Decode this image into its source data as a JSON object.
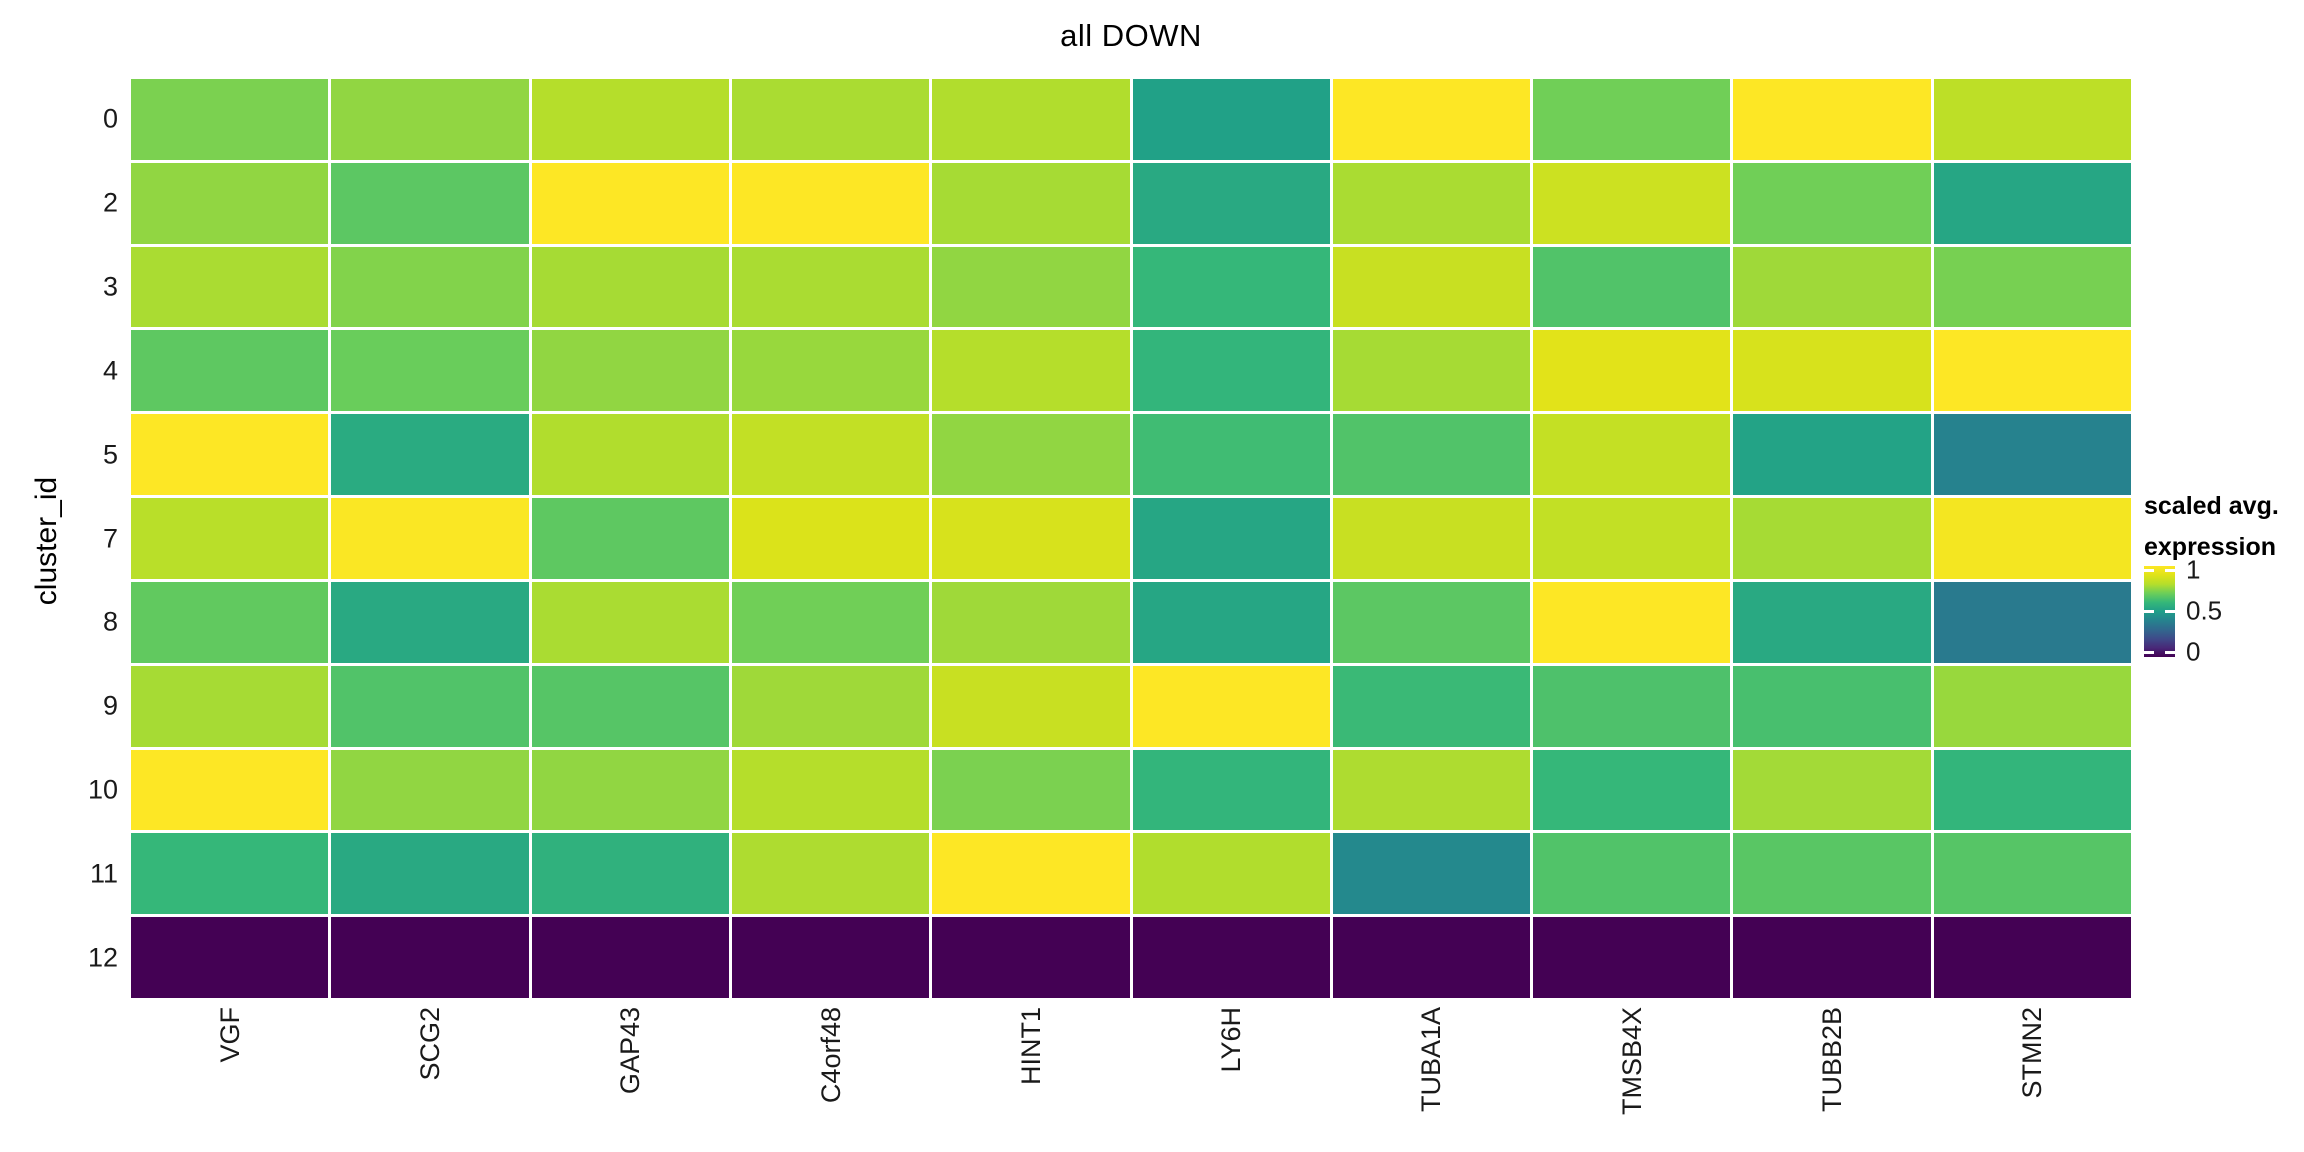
{
  "title": "all DOWN",
  "y_axis": {
    "title": "cluster_id"
  },
  "legend": {
    "title_line1": "scaled avg.",
    "title_line2": "expression",
    "tick_labels": [
      "1",
      "0.5",
      "0"
    ]
  },
  "colors": {
    "background": "#ffffff",
    "grid_gap": "#ffffff",
    "min_color": "#440154",
    "max_color": "#fde725"
  },
  "chart_data": {
    "type": "heatmap",
    "title": "all DOWN",
    "ylabel": "cluster_id",
    "colormap": "viridis",
    "legend_title": "scaled avg. expression",
    "value_range": [
      0,
      1
    ],
    "legend_ticks": [
      1,
      0.5,
      0
    ],
    "x_categories": [
      "VGF",
      "SCG2",
      "GAP43",
      "C4orf48",
      "HINT1",
      "LY6H",
      "TUBA1A",
      "TMSB4X",
      "TUBB2B",
      "STMN2"
    ],
    "y_categories": [
      "0",
      "2",
      "3",
      "4",
      "5",
      "7",
      "8",
      "9",
      "10",
      "11",
      "12"
    ],
    "values": [
      [
        0.72,
        0.75,
        0.8,
        0.785,
        0.795,
        0.51,
        1.0,
        0.705,
        1.0,
        0.82
      ],
      [
        0.75,
        0.67,
        1.0,
        1.0,
        0.78,
        0.545,
        0.785,
        0.855,
        0.705,
        0.53
      ],
      [
        0.785,
        0.73,
        0.78,
        0.785,
        0.75,
        0.6,
        0.845,
        0.65,
        0.77,
        0.715
      ],
      [
        0.675,
        0.695,
        0.75,
        0.76,
        0.8,
        0.59,
        0.78,
        0.91,
        0.88,
        1.0
      ],
      [
        1.0,
        0.55,
        0.795,
        0.83,
        0.75,
        0.62,
        0.65,
        0.835,
        0.52,
        0.4
      ],
      [
        0.81,
        0.99,
        0.675,
        0.89,
        0.88,
        0.53,
        0.845,
        0.83,
        0.78,
        0.97
      ],
      [
        0.68,
        0.545,
        0.785,
        0.705,
        0.77,
        0.53,
        0.67,
        1.0,
        0.545,
        0.37
      ],
      [
        0.78,
        0.65,
        0.66,
        0.77,
        0.845,
        1.0,
        0.61,
        0.645,
        0.635,
        0.76
      ],
      [
        1.0,
        0.75,
        0.75,
        0.8,
        0.72,
        0.59,
        0.79,
        0.6,
        0.775,
        0.59
      ],
      [
        0.6,
        0.545,
        0.575,
        0.79,
        1.0,
        0.795,
        0.425,
        0.65,
        0.665,
        0.66
      ],
      [
        0.0,
        0.0,
        0.0,
        0.0,
        0.0,
        0.0,
        0.0,
        0.0,
        0.0,
        0.0
      ]
    ]
  }
}
